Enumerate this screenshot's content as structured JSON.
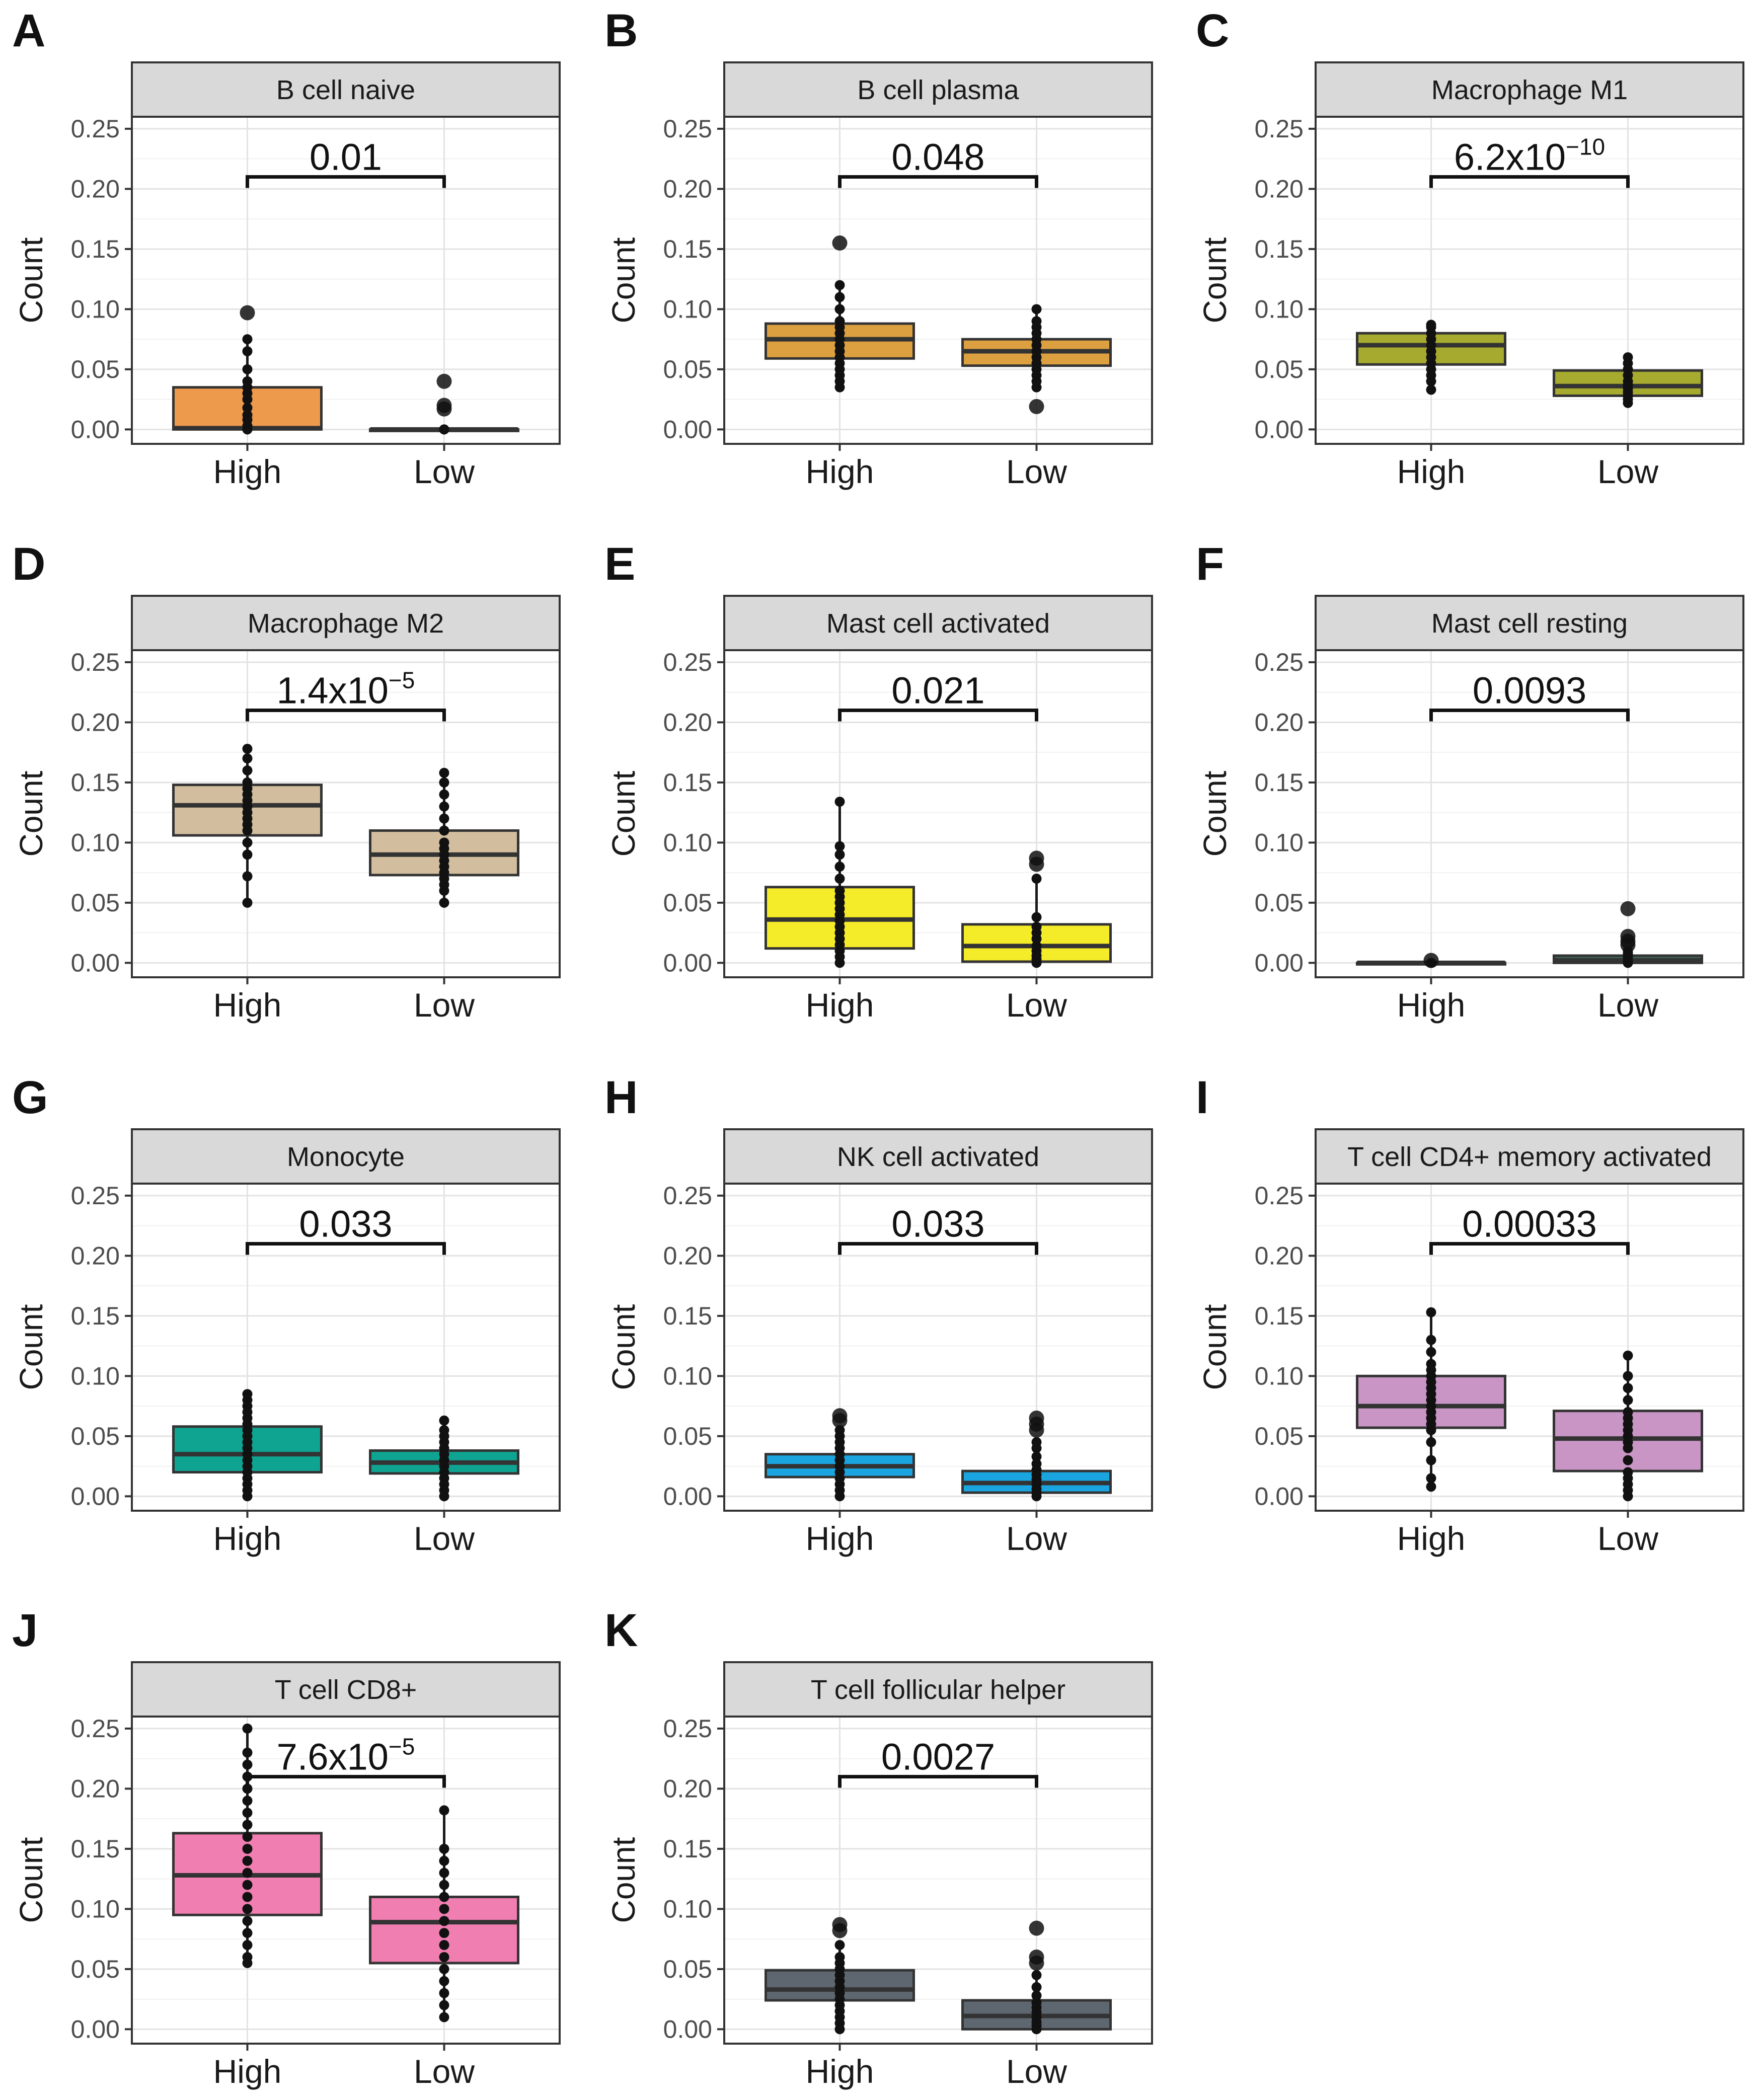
{
  "figure": {
    "ylabel": "Count",
    "yticks": [
      "0.00",
      "0.05",
      "0.10",
      "0.15",
      "0.20",
      "0.25"
    ],
    "groups": [
      "High",
      "Low"
    ]
  },
  "chart_data": [
    {
      "type": "box",
      "letter": "A",
      "title": "B cell naive",
      "color": "#EE9A4D",
      "categories": [
        "High",
        "Low"
      ],
      "ylabel": "Count",
      "ylim": [
        -0.012,
        0.26
      ],
      "pvalue": {
        "mantissa": "0.01",
        "exponent": ""
      },
      "boxes": [
        {
          "q1": 0.0,
          "median": 0.001,
          "q3": 0.035,
          "whisker_low": 0.0,
          "whisker_high": 0.075,
          "points": [
            0.0,
            0.0,
            0.003,
            0.008,
            0.012,
            0.018,
            0.025,
            0.03,
            0.035,
            0.04,
            0.05,
            0.065,
            0.075
          ],
          "outliers": [
            0.097
          ]
        },
        {
          "q1": 0.0,
          "median": 0.0,
          "q3": 0.0,
          "whisker_low": 0.0,
          "whisker_high": 0.0,
          "points": [
            0.0,
            0.0,
            0.0,
            0.0
          ],
          "outliers": [
            0.017,
            0.02,
            0.04
          ]
        }
      ]
    },
    {
      "type": "box",
      "letter": "B",
      "title": "B cell plasma",
      "color": "#DDA040",
      "categories": [
        "High",
        "Low"
      ],
      "ylabel": "Count",
      "ylim": [
        -0.012,
        0.26
      ],
      "pvalue": {
        "mantissa": "0.048",
        "exponent": ""
      },
      "boxes": [
        {
          "q1": 0.059,
          "median": 0.075,
          "q3": 0.088,
          "whisker_low": 0.035,
          "whisker_high": 0.12,
          "points": [
            0.035,
            0.04,
            0.045,
            0.05,
            0.055,
            0.06,
            0.065,
            0.07,
            0.075,
            0.08,
            0.085,
            0.09,
            0.1,
            0.11,
            0.12
          ],
          "outliers": [
            0.155
          ]
        },
        {
          "q1": 0.053,
          "median": 0.065,
          "q3": 0.075,
          "whisker_low": 0.035,
          "whisker_high": 0.1,
          "points": [
            0.035,
            0.04,
            0.045,
            0.05,
            0.055,
            0.06,
            0.065,
            0.07,
            0.075,
            0.08,
            0.085,
            0.09,
            0.1
          ],
          "outliers": [
            0.019
          ]
        }
      ]
    },
    {
      "type": "box",
      "letter": "C",
      "title": "Macrophage M1",
      "color": "#A6AA2E",
      "categories": [
        "High",
        "Low"
      ],
      "ylabel": "Count",
      "ylim": [
        -0.012,
        0.26
      ],
      "pvalue": {
        "mantissa": "6.2x10",
        "exponent": "−10"
      },
      "boxes": [
        {
          "q1": 0.054,
          "median": 0.07,
          "q3": 0.08,
          "whisker_low": 0.033,
          "whisker_high": 0.087,
          "points": [
            0.033,
            0.04,
            0.045,
            0.05,
            0.055,
            0.06,
            0.065,
            0.07,
            0.075,
            0.08,
            0.085,
            0.087
          ],
          "outliers": []
        },
        {
          "q1": 0.028,
          "median": 0.036,
          "q3": 0.049,
          "whisker_low": 0.022,
          "whisker_high": 0.06,
          "points": [
            0.022,
            0.025,
            0.028,
            0.031,
            0.034,
            0.037,
            0.04,
            0.045,
            0.05,
            0.055,
            0.06
          ],
          "outliers": []
        }
      ]
    },
    {
      "type": "box",
      "letter": "D",
      "title": "Macrophage M2",
      "color": "#D2BE9E",
      "categories": [
        "High",
        "Low"
      ],
      "ylabel": "Count",
      "ylim": [
        -0.012,
        0.26
      ],
      "pvalue": {
        "mantissa": "1.4x10",
        "exponent": "−5"
      },
      "boxes": [
        {
          "q1": 0.106,
          "median": 0.131,
          "q3": 0.148,
          "whisker_low": 0.05,
          "whisker_high": 0.178,
          "points": [
            0.05,
            0.072,
            0.09,
            0.1,
            0.11,
            0.115,
            0.12,
            0.125,
            0.13,
            0.135,
            0.14,
            0.145,
            0.15,
            0.16,
            0.17,
            0.178
          ],
          "outliers": []
        },
        {
          "q1": 0.073,
          "median": 0.09,
          "q3": 0.11,
          "whisker_low": 0.05,
          "whisker_high": 0.158,
          "points": [
            0.05,
            0.06,
            0.065,
            0.07,
            0.075,
            0.08,
            0.085,
            0.09,
            0.095,
            0.1,
            0.11,
            0.12,
            0.13,
            0.14,
            0.15,
            0.158
          ],
          "outliers": []
        }
      ]
    },
    {
      "type": "box",
      "letter": "E",
      "title": "Mast cell activated",
      "color": "#F5EC29",
      "categories": [
        "High",
        "Low"
      ],
      "ylabel": "Count",
      "ylim": [
        -0.012,
        0.26
      ],
      "pvalue": {
        "mantissa": "0.021",
        "exponent": ""
      },
      "boxes": [
        {
          "q1": 0.012,
          "median": 0.036,
          "q3": 0.063,
          "whisker_low": 0.0,
          "whisker_high": 0.134,
          "points": [
            0.0,
            0.005,
            0.01,
            0.015,
            0.02,
            0.025,
            0.03,
            0.035,
            0.04,
            0.045,
            0.05,
            0.055,
            0.06,
            0.07,
            0.08,
            0.09,
            0.097,
            0.134
          ],
          "outliers": []
        },
        {
          "q1": 0.001,
          "median": 0.014,
          "q3": 0.032,
          "whisker_low": 0.0,
          "whisker_high": 0.07,
          "points": [
            0.0,
            0.003,
            0.006,
            0.01,
            0.014,
            0.02,
            0.025,
            0.03,
            0.038,
            0.07
          ],
          "outliers": [
            0.082,
            0.087
          ]
        }
      ]
    },
    {
      "type": "box",
      "letter": "F",
      "title": "Mast cell resting",
      "color": "#3C6457",
      "categories": [
        "High",
        "Low"
      ],
      "ylabel": "Count",
      "ylim": [
        -0.012,
        0.26
      ],
      "pvalue": {
        "mantissa": "0.0093",
        "exponent": ""
      },
      "boxes": [
        {
          "q1": 0.0,
          "median": 0.0,
          "q3": 0.0,
          "whisker_low": 0.0,
          "whisker_high": 0.0,
          "points": [
            0.0,
            0.0,
            0.0
          ],
          "outliers": [
            0.002
          ]
        },
        {
          "q1": 0.0,
          "median": 0.002,
          "q3": 0.006,
          "whisker_low": 0.0,
          "whisker_high": 0.01,
          "points": [
            0.0,
            0.0,
            0.002,
            0.004,
            0.006,
            0.008,
            0.01
          ],
          "outliers": [
            0.015,
            0.018,
            0.022,
            0.045
          ]
        }
      ]
    },
    {
      "type": "box",
      "letter": "G",
      "title": "Monocyte",
      "color": "#0FA392",
      "categories": [
        "High",
        "Low"
      ],
      "ylabel": "Count",
      "ylim": [
        -0.012,
        0.26
      ],
      "pvalue": {
        "mantissa": "0.033",
        "exponent": ""
      },
      "boxes": [
        {
          "q1": 0.02,
          "median": 0.035,
          "q3": 0.058,
          "whisker_low": 0.0,
          "whisker_high": 0.085,
          "points": [
            0.0,
            0.005,
            0.01,
            0.015,
            0.02,
            0.025,
            0.03,
            0.035,
            0.04,
            0.045,
            0.05,
            0.055,
            0.06,
            0.065,
            0.07,
            0.075,
            0.08,
            0.085
          ],
          "outliers": []
        },
        {
          "q1": 0.019,
          "median": 0.028,
          "q3": 0.038,
          "whisker_low": 0.0,
          "whisker_high": 0.063,
          "points": [
            0.0,
            0.005,
            0.01,
            0.015,
            0.02,
            0.025,
            0.03,
            0.035,
            0.04,
            0.045,
            0.05,
            0.055,
            0.063
          ],
          "outliers": []
        }
      ]
    },
    {
      "type": "box",
      "letter": "H",
      "title": "NK cell activated",
      "color": "#1AA5E0",
      "categories": [
        "High",
        "Low"
      ],
      "ylabel": "Count",
      "ylim": [
        -0.012,
        0.26
      ],
      "pvalue": {
        "mantissa": "0.033",
        "exponent": ""
      },
      "boxes": [
        {
          "q1": 0.016,
          "median": 0.025,
          "q3": 0.035,
          "whisker_low": 0.0,
          "whisker_high": 0.055,
          "points": [
            0.0,
            0.005,
            0.01,
            0.015,
            0.02,
            0.025,
            0.03,
            0.035,
            0.04,
            0.045,
            0.05,
            0.055
          ],
          "outliers": [
            0.063,
            0.067
          ]
        },
        {
          "q1": 0.003,
          "median": 0.011,
          "q3": 0.021,
          "whisker_low": 0.0,
          "whisker_high": 0.045,
          "points": [
            0.0,
            0.003,
            0.006,
            0.01,
            0.014,
            0.018,
            0.022,
            0.027,
            0.033,
            0.04,
            0.045
          ],
          "outliers": [
            0.055,
            0.06,
            0.065
          ]
        }
      ]
    },
    {
      "type": "box",
      "letter": "I",
      "title": "T cell CD4+ memory activated",
      "color": "#C895C5",
      "categories": [
        "High",
        "Low"
      ],
      "ylabel": "Count",
      "ylim": [
        -0.012,
        0.26
      ],
      "pvalue": {
        "mantissa": "0.00033",
        "exponent": ""
      },
      "boxes": [
        {
          "q1": 0.057,
          "median": 0.075,
          "q3": 0.1,
          "whisker_low": 0.008,
          "whisker_high": 0.153,
          "points": [
            0.008,
            0.015,
            0.03,
            0.045,
            0.055,
            0.06,
            0.065,
            0.07,
            0.075,
            0.08,
            0.085,
            0.09,
            0.095,
            0.1,
            0.105,
            0.11,
            0.12,
            0.13,
            0.153
          ],
          "outliers": []
        },
        {
          "q1": 0.021,
          "median": 0.048,
          "q3": 0.071,
          "whisker_low": 0.0,
          "whisker_high": 0.117,
          "points": [
            0.0,
            0.005,
            0.01,
            0.015,
            0.02,
            0.03,
            0.04,
            0.045,
            0.05,
            0.055,
            0.06,
            0.065,
            0.07,
            0.08,
            0.09,
            0.1,
            0.117
          ],
          "outliers": []
        }
      ]
    },
    {
      "type": "box",
      "letter": "J",
      "title": "T cell CD8+",
      "color": "#F07EB0",
      "categories": [
        "High",
        "Low"
      ],
      "ylabel": "Count",
      "ylim": [
        -0.012,
        0.26
      ],
      "pvalue": {
        "mantissa": "7.6x10",
        "exponent": "−5"
      },
      "boxes": [
        {
          "q1": 0.095,
          "median": 0.128,
          "q3": 0.163,
          "whisker_low": 0.055,
          "whisker_high": 0.25,
          "points": [
            0.055,
            0.06,
            0.07,
            0.08,
            0.09,
            0.1,
            0.11,
            0.12,
            0.13,
            0.14,
            0.15,
            0.16,
            0.17,
            0.18,
            0.19,
            0.2,
            0.21,
            0.22,
            0.23,
            0.25
          ],
          "outliers": []
        },
        {
          "q1": 0.055,
          "median": 0.089,
          "q3": 0.11,
          "whisker_low": 0.01,
          "whisker_high": 0.182,
          "points": [
            0.01,
            0.02,
            0.03,
            0.04,
            0.05,
            0.06,
            0.07,
            0.08,
            0.09,
            0.1,
            0.11,
            0.12,
            0.13,
            0.14,
            0.15,
            0.182
          ],
          "outliers": []
        }
      ]
    },
    {
      "type": "box",
      "letter": "K",
      "title": "T cell follicular helper",
      "color": "#5E6770",
      "categories": [
        "High",
        "Low"
      ],
      "ylabel": "Count",
      "ylim": [
        -0.012,
        0.26
      ],
      "pvalue": {
        "mantissa": "0.0027",
        "exponent": ""
      },
      "boxes": [
        {
          "q1": 0.024,
          "median": 0.033,
          "q3": 0.049,
          "whisker_low": 0.0,
          "whisker_high": 0.07,
          "points": [
            0.0,
            0.005,
            0.01,
            0.015,
            0.02,
            0.025,
            0.03,
            0.035,
            0.04,
            0.045,
            0.05,
            0.055,
            0.06,
            0.07
          ],
          "outliers": [
            0.082,
            0.087
          ]
        },
        {
          "q1": 0.0,
          "median": 0.011,
          "q3": 0.024,
          "whisker_low": 0.0,
          "whisker_high": 0.045,
          "points": [
            0.0,
            0.003,
            0.006,
            0.01,
            0.014,
            0.018,
            0.022,
            0.028,
            0.035,
            0.045
          ],
          "outliers": [
            0.055,
            0.06,
            0.084
          ]
        }
      ]
    }
  ]
}
